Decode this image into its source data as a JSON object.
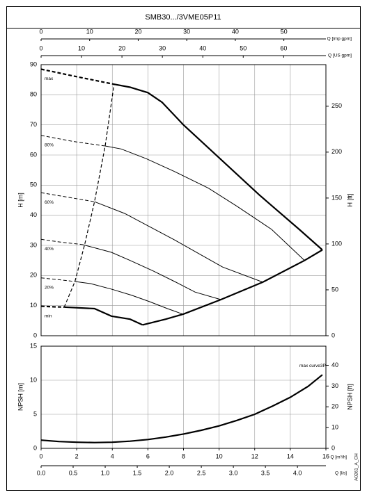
{
  "chart_data": [
    {
      "type": "line",
      "title": "SMB30.../3VME05P11",
      "xlim": [
        0,
        16
      ],
      "top_axes": [
        {
          "label": "Q [imp gpm]",
          "xlim": [
            0,
            58.66
          ],
          "xticks": [
            0,
            10,
            20,
            30,
            40,
            50
          ]
        },
        {
          "label": "Q [US gpm]",
          "xlim": [
            0,
            70.45
          ],
          "xticks": [
            0,
            10,
            20,
            30,
            40,
            50,
            60
          ]
        }
      ],
      "ylabel": "H [m]",
      "ylim": [
        0,
        90
      ],
      "yticks": [
        0,
        10,
        20,
        30,
        40,
        50,
        60,
        70,
        80,
        90
      ],
      "y2label": "H [ft]",
      "y2lim": [
        0,
        295.3
      ],
      "y2ticks": [
        0,
        50,
        100,
        150,
        200,
        250
      ],
      "grid": true,
      "series": [
        {
          "name": "max",
          "color": "#000000",
          "style": "thick",
          "dash": {
            "x": [
              0,
              2,
              4.1
            ],
            "values": [
              88.5,
              86,
              83.5
            ]
          },
          "x": [
            4.1,
            5,
            6,
            6.8,
            8,
            10.2,
            12.25,
            14.5,
            15.8
          ],
          "values": [
            83.5,
            82.5,
            80.7,
            77.5,
            70,
            58,
            46.8,
            35.3,
            28.5
          ]
        },
        {
          "name": "80%",
          "color": "#000000",
          "style": "thin",
          "dash": {
            "x": [
              0,
              1.8,
              3.6
            ],
            "values": [
              66.5,
              64.5,
              63
            ]
          },
          "x": [
            3.6,
            4.5,
            5.9,
            7.5,
            9.4,
            11,
            12.95,
            14.8
          ],
          "values": [
            63,
            62,
            58.8,
            54.5,
            49,
            43,
            35.3,
            25
          ]
        },
        {
          "name": "60%",
          "color": "#000000",
          "style": "thin",
          "dash": {
            "x": [
              0,
              1.5,
              3
            ],
            "values": [
              47.5,
              46,
              44.5
            ]
          },
          "x": [
            3,
            4.7,
            6,
            7.5,
            9,
            10.2,
            12.45
          ],
          "values": [
            44.5,
            40.6,
            36.5,
            31.8,
            26.8,
            22.8,
            17.8
          ]
        },
        {
          "name": "40%",
          "color": "#000000",
          "style": "thin",
          "dash": {
            "x": [
              0,
              1.2,
              2.3
            ],
            "values": [
              32,
              31,
              30.3
            ]
          },
          "x": [
            2.3,
            3.95,
            5,
            6.3,
            7.5,
            8.65,
            10.1
          ],
          "values": [
            30.3,
            27.7,
            25,
            21.5,
            18,
            14.5,
            12
          ]
        },
        {
          "name": "20%",
          "color": "#000000",
          "style": "thin",
          "dash": {
            "x": [
              0,
              1,
              1.9
            ],
            "values": [
              19.2,
              18.6,
              18
            ]
          },
          "x": [
            1.9,
            2.78,
            4,
            5.1,
            6.1,
            7.1,
            7.95
          ],
          "values": [
            18,
            17.3,
            15.4,
            13.4,
            11.3,
            9,
            7.2
          ]
        },
        {
          "name": "min",
          "color": "#000000",
          "style": "thick",
          "dash": {
            "x": [
              0,
              0.7,
              1.3
            ],
            "values": [
              9.8,
              9.6,
              9.5
            ]
          },
          "x": [
            1.3,
            3,
            3.95,
            5,
            5.7
          ],
          "values": [
            9.5,
            9,
            6.5,
            5.5,
            3.6
          ]
        },
        {
          "color": "#000000",
          "style": "thick",
          "x": [
            5.7,
            7,
            8,
            10.1,
            12.45,
            14.8,
            15.8
          ],
          "values": [
            3.6,
            5.5,
            7.2,
            12,
            17.8,
            25,
            28.5
          ]
        },
        {
          "color": "#000000",
          "style": "dashed",
          "x": [
            1.3,
            1.9,
            2.45,
            3,
            3.6,
            4.1
          ],
          "values": [
            9.5,
            18,
            30.3,
            44.5,
            63,
            83.5
          ]
        }
      ]
    },
    {
      "type": "line",
      "annotation": "A0261_A_CH",
      "xlabel": "Q [m³/h]",
      "xlim": [
        0,
        16
      ],
      "xticks": [
        0,
        2,
        4,
        6,
        8,
        10,
        12,
        14,
        16
      ],
      "bottom_axis": {
        "label": "Q [l/s]",
        "xlim": [
          0,
          4.444
        ],
        "xticks": [
          {
            "value": 0,
            "label": "0.0"
          },
          0.5,
          {
            "value": 1,
            "label": "1.0"
          },
          1.5,
          {
            "value": 2,
            "label": "2.0"
          },
          2.5,
          {
            "value": 3,
            "label": "3.0"
          },
          3.5,
          {
            "value": 4,
            "label": "4.0"
          }
        ]
      },
      "ylabel": "NPSH [m]",
      "ylim": [
        0,
        15
      ],
      "yticks": [
        0,
        5,
        10,
        15
      ],
      "y2label": "NPSH [ft]",
      "y2lim": [
        0,
        49.21
      ],
      "y2ticks": [
        0,
        10,
        20,
        30,
        40
      ],
      "grid": true,
      "series": [
        {
          "name": "max curve3P",
          "color": "#000000",
          "style": "thick",
          "x": [
            0,
            1,
            2,
            3,
            4,
            5,
            6,
            7,
            8,
            9,
            10,
            11,
            12,
            13,
            14,
            15,
            15.8
          ],
          "values": [
            1.2,
            1.0,
            0.9,
            0.85,
            0.9,
            1.05,
            1.3,
            1.65,
            2.1,
            2.65,
            3.3,
            4.1,
            5.0,
            6.2,
            7.5,
            9.1,
            10.8
          ]
        }
      ]
    }
  ]
}
